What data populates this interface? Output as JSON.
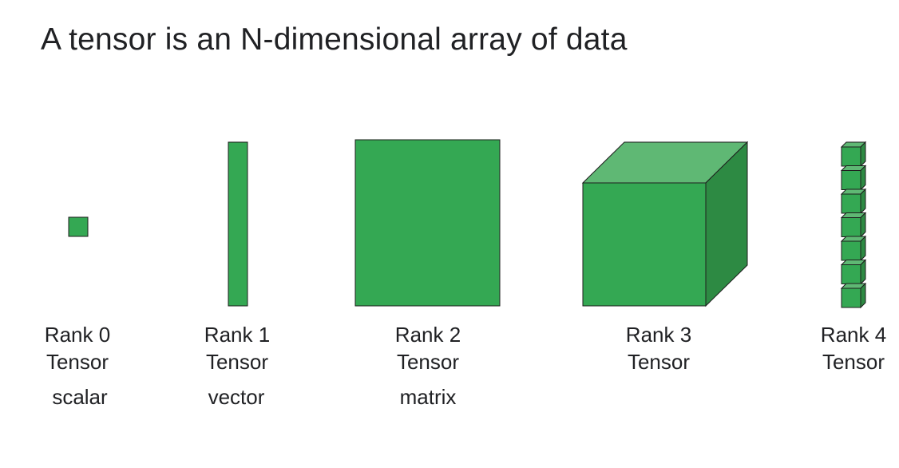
{
  "title": "A tensor is an N-dimensional array of data",
  "colors": {
    "fill": "#34a853",
    "top_face": "#5fb874",
    "side_face": "#2d8a43",
    "stroke": "#1e1e1e"
  },
  "tensors": [
    {
      "rank_label": "Rank 0",
      "type_label": "Tensor",
      "description": "scalar"
    },
    {
      "rank_label": "Rank 1",
      "type_label": "Tensor",
      "description": "vector"
    },
    {
      "rank_label": "Rank 2",
      "type_label": "Tensor",
      "description": "matrix"
    },
    {
      "rank_label": "Rank 3",
      "type_label": "Tensor",
      "description": ""
    },
    {
      "rank_label": "Rank 4",
      "type_label": "Tensor",
      "description": ""
    }
  ]
}
